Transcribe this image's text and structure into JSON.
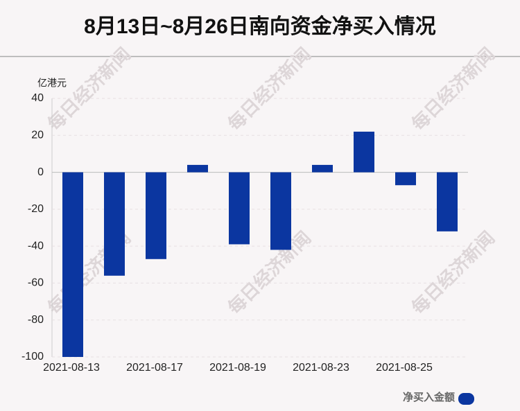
{
  "chart_data": {
    "type": "bar",
    "title": "8月13日~8月26日南向资金净买入情况",
    "y_label": "亿港元",
    "watermark": "每日经济新闻",
    "categories": [
      "2021-08-13",
      null,
      "2021-08-17",
      null,
      "2021-08-19",
      null,
      "2021-08-23",
      null,
      "2021-08-25",
      null
    ],
    "series": [
      {
        "name": "净买入金额",
        "color": "#0b36a0",
        "values": [
          -100,
          -56,
          -47,
          4,
          -39,
          -42,
          4,
          22,
          -7,
          -32
        ]
      }
    ],
    "ylim": [
      -100,
      40
    ],
    "yticks": [
      -100,
      -80,
      -60,
      -40,
      -20,
      0,
      20,
      40
    ],
    "grid": true
  }
}
